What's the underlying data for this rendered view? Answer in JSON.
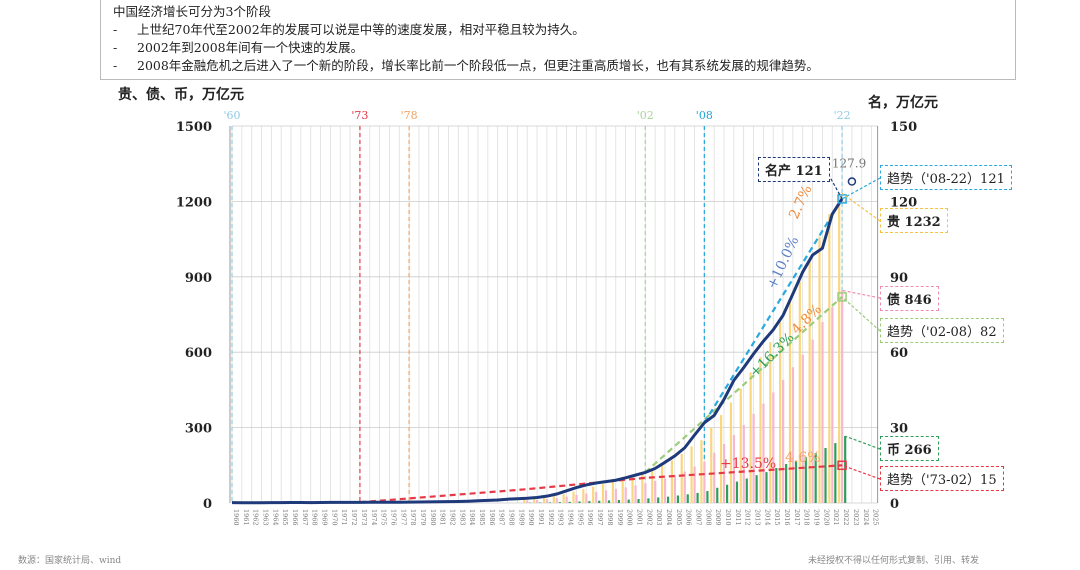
{
  "note": {
    "title": "中国经济增长可分为3个阶段",
    "bullets": [
      "上世纪70年代至2002年的发展可以说是中等的速度发展，相对平稳且较为持久。",
      "2002年到2008年间有一个快速的发展。",
      "2008年金融危机之后进入了一个新的阶段，增长率比前一个阶段低一点，但更注重高质增长，也有其系统发展的规律趋势。"
    ],
    "bullet_mark": "-"
  },
  "footer": {
    "source": "数源：国家统计局、wind",
    "copyright": "未经授权不得以任何形式复制、引用、转发"
  },
  "chart_data": {
    "type": "bar+line",
    "ylabel_left": "贵、债、币，万亿元",
    "ylabel_right": "名，万亿元",
    "ylim_left": [
      0,
      1500
    ],
    "ylim_right": [
      0,
      150
    ],
    "yticks_left": [
      "0",
      "300",
      "600",
      "900",
      "1200",
      "1500"
    ],
    "yticks_right": [
      "0",
      "30",
      "60",
      "90",
      "120",
      "150"
    ],
    "xlim": [
      1960,
      2025
    ],
    "grid": "on",
    "markers": [
      {
        "label": "'60",
        "year": 1960,
        "color": "#8ecae6"
      },
      {
        "label": "'73",
        "year": 1973,
        "color": "#e63946"
      },
      {
        "label": "'78",
        "year": 1978,
        "color": "#f4a261"
      },
      {
        "label": "'02",
        "year": 2002,
        "color": "#a7d49b"
      },
      {
        "label": "'08",
        "year": 2008,
        "color": "#22a7d8"
      },
      {
        "label": "'22",
        "year": 2022,
        "color": "#8ecae6"
      }
    ],
    "bar_years_start": 1990,
    "bars": [
      {
        "name": "贵",
        "axis": "left",
        "color": "#f9d77e",
        "values": [
          15,
          18,
          22,
          28,
          35,
          45,
          55,
          65,
          75,
          85,
          95,
          105,
          118,
          135,
          150,
          170,
          195,
          225,
          250,
          300,
          350,
          400,
          455,
          520,
          580,
          640,
          720,
          800,
          880,
          960,
          1060,
          1150,
          1232
        ]
      },
      {
        "name": "债",
        "axis": "left",
        "color": "#f6b8cf",
        "values": [
          10,
          12,
          15,
          20,
          25,
          32,
          38,
          44,
          50,
          56,
          62,
          70,
          78,
          88,
          98,
          110,
          125,
          145,
          165,
          200,
          235,
          270,
          310,
          355,
          395,
          440,
          490,
          540,
          590,
          650,
          720,
          780,
          846
        ]
      },
      {
        "name": "币",
        "axis": "left",
        "color": "#2e9e5b",
        "values": [
          1.5,
          1.9,
          2.5,
          3.5,
          4.7,
          6.1,
          7.6,
          9.1,
          10.5,
          12.0,
          13.5,
          15.8,
          18.5,
          22.1,
          25.3,
          29.9,
          34.6,
          40.3,
          47.5,
          60.6,
          72.6,
          85.2,
          97.4,
          110.7,
          122.8,
          139.2,
          155.0,
          167.7,
          182.7,
          198.6,
          218.7,
          238.3,
          266.4
        ]
      }
    ],
    "line": {
      "name": "名产",
      "axis": "right",
      "color": "#1f3a7a",
      "years_start": 1960,
      "values": [
        0.15,
        0.12,
        0.12,
        0.12,
        0.15,
        0.17,
        0.19,
        0.18,
        0.17,
        0.19,
        0.23,
        0.24,
        0.25,
        0.27,
        0.28,
        0.3,
        0.29,
        0.32,
        0.37,
        0.41,
        0.46,
        0.49,
        0.53,
        0.6,
        0.72,
        0.9,
        1.03,
        1.21,
        1.51,
        1.71,
        1.89,
        2.2,
        2.72,
        3.57,
        4.86,
        6.13,
        7.18,
        7.97,
        8.52,
        9.06,
        10.03,
        11.09,
        12.17,
        13.74,
        16.18,
        18.73,
        21.94,
        27.0,
        31.92,
        34.85,
        41.21,
        48.79,
        53.86,
        59.3,
        64.36,
        68.89,
        74.64,
        83.2,
        91.93,
        98.65,
        101.36,
        114.92,
        121.02
      ]
    },
    "trends": [
      {
        "name": "趋势（'73-02）",
        "color": "#e63946",
        "points": [
          [
            1973,
            0.3
          ],
          [
            1990,
            5.5
          ],
          [
            2002,
            10
          ],
          [
            2022,
            15
          ]
        ],
        "labels": [
          "+13.5%",
          "4.6%"
        ]
      },
      {
        "name": "趋势（'02-08）",
        "color": "#9ccc7a",
        "points": [
          [
            2002,
            12.2
          ],
          [
            2022,
            82
          ]
        ],
        "labels": [
          "+16.3%",
          "4.8%"
        ]
      },
      {
        "name": "趋势（'08-22）",
        "color": "#2aa8e0",
        "points": [
          [
            2008,
            31.9
          ],
          [
            2022,
            121
          ]
        ],
        "labels": [
          "+10.0%",
          "2.7%"
        ]
      }
    ],
    "forecast_point": {
      "year": 2023,
      "value": 127.9,
      "label": "127.9"
    },
    "callouts": {
      "gdp": "名产 121",
      "trend_08_22": "趋势（'08-22）121",
      "assets": "贵 1232",
      "debt": "债 846",
      "trend_02_08": "趋势（'02-08）82",
      "money": "币 266",
      "trend_73_02": "趋势（'73-02）15"
    }
  }
}
